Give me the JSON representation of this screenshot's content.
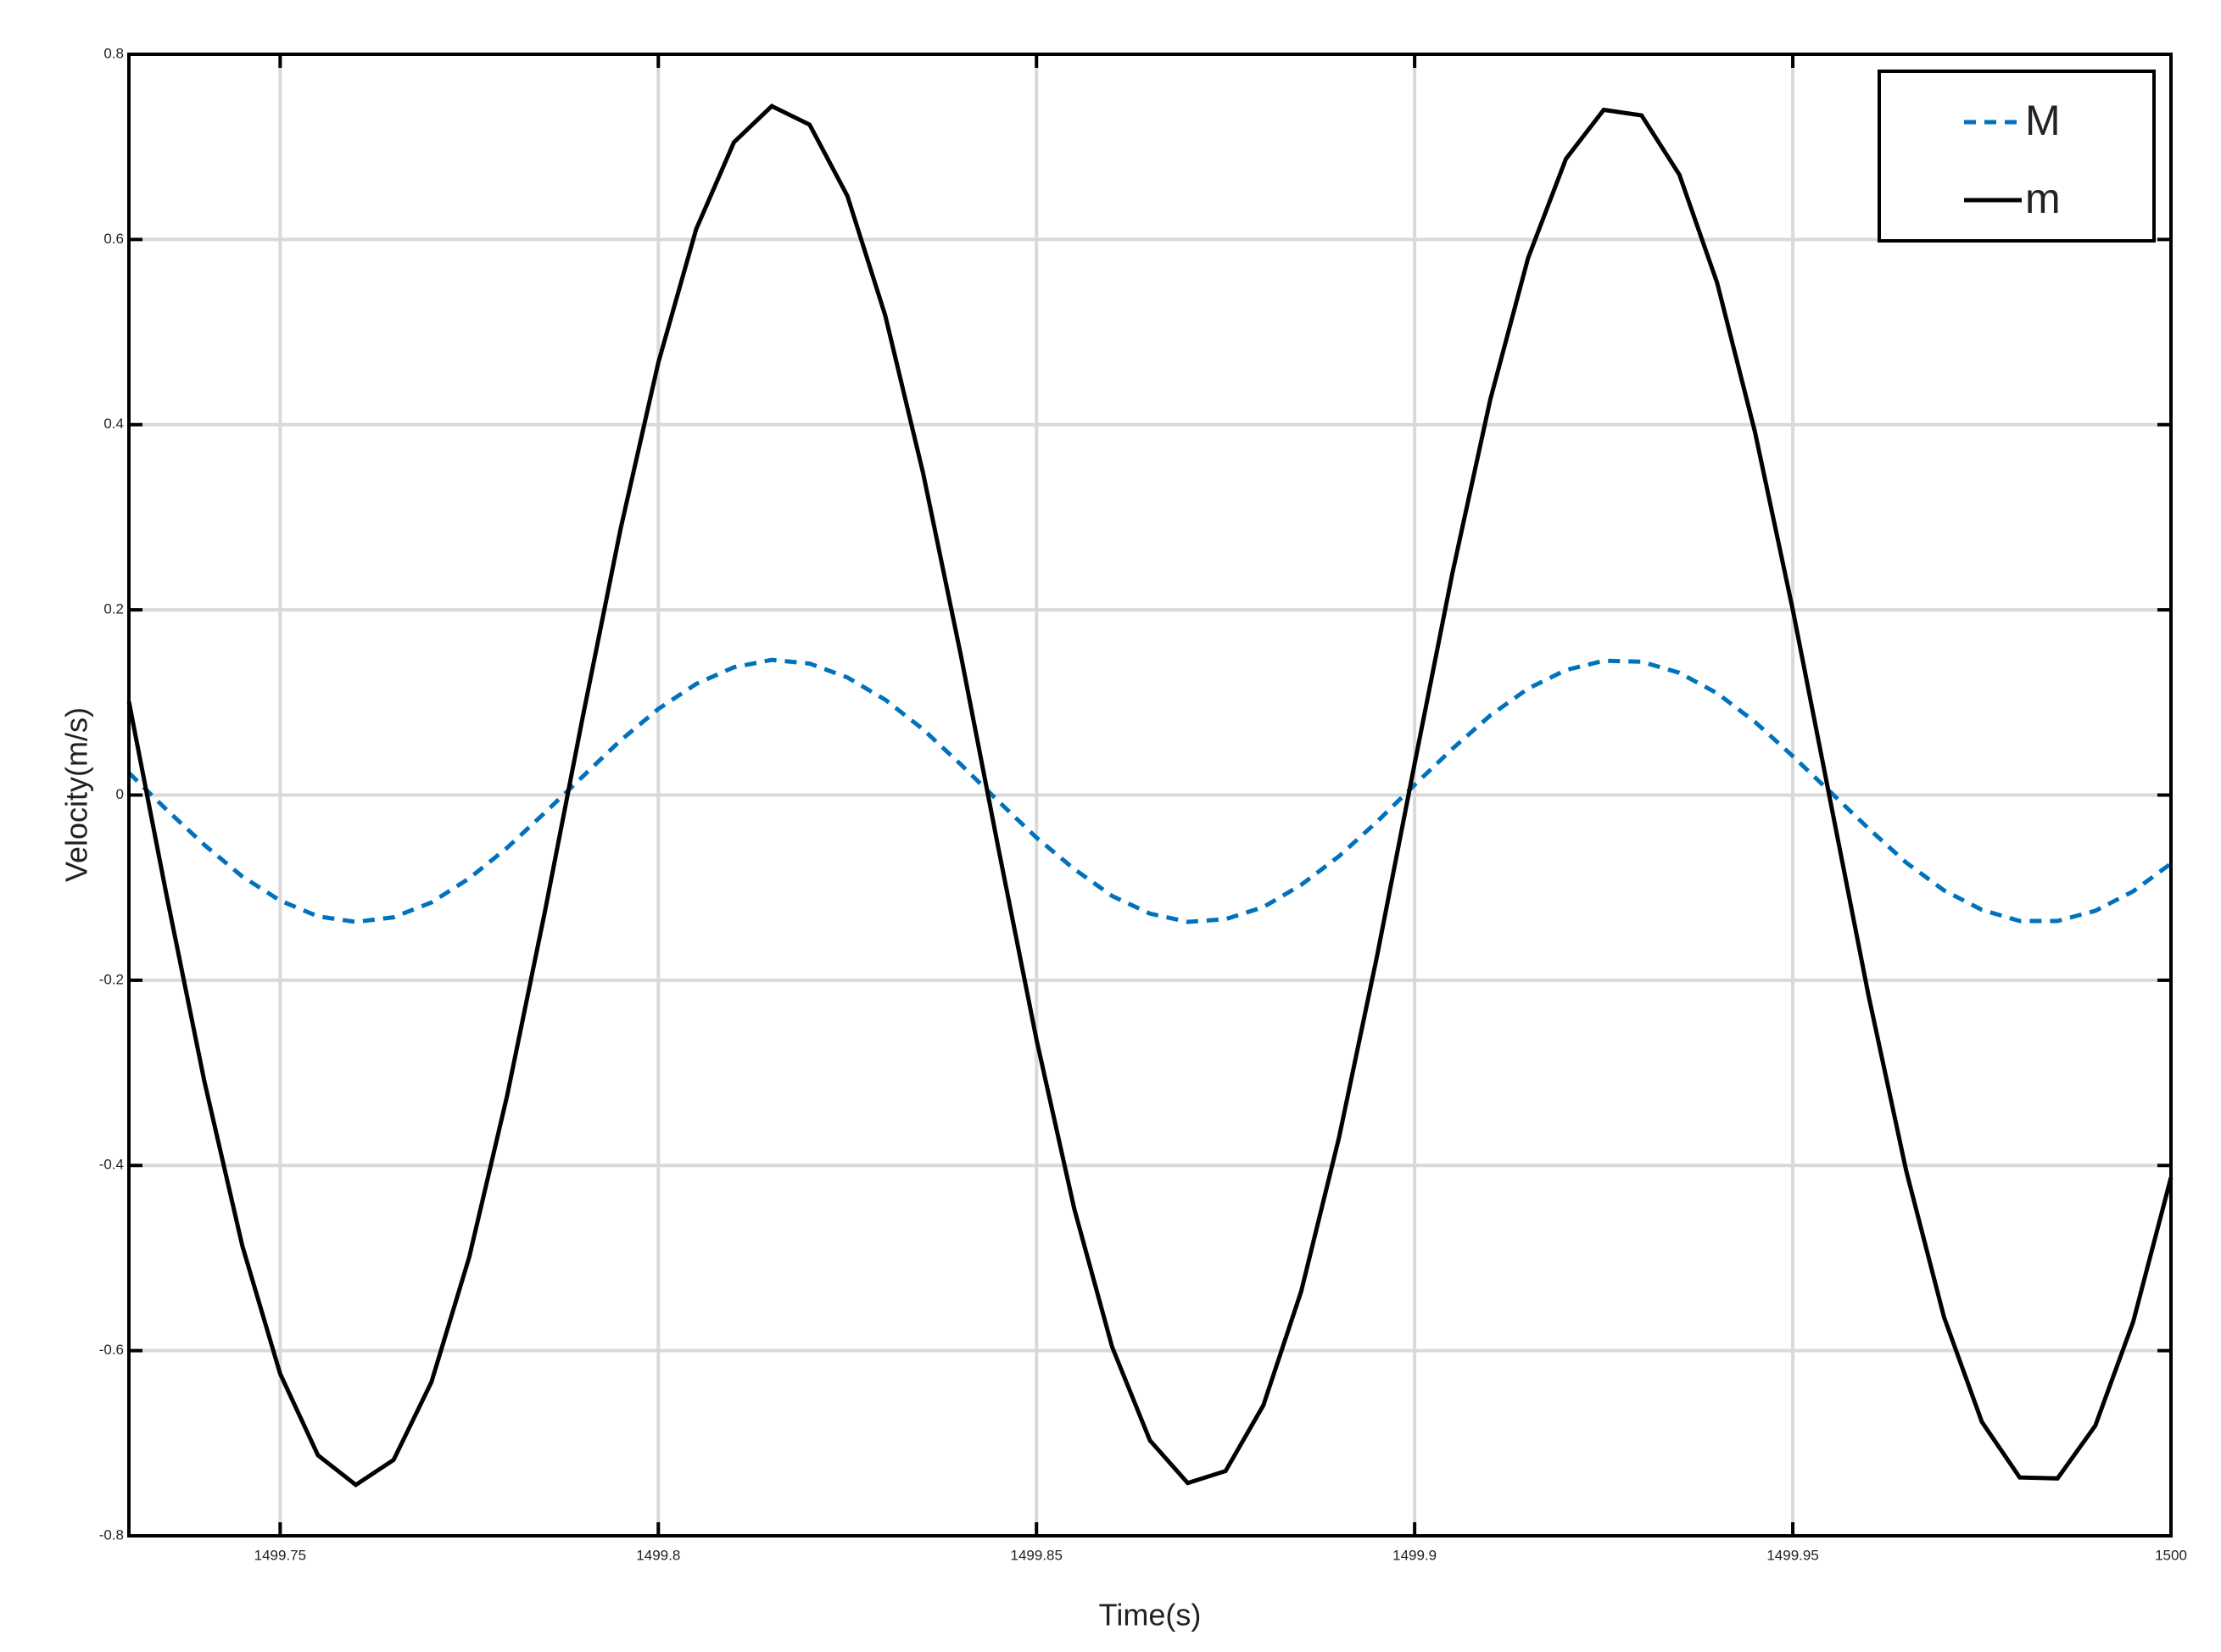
{
  "chart_data": {
    "type": "line",
    "x_label": "Time(s)",
    "y_label": "Velocity(m/s)",
    "x": [
      1499.73,
      1499.735,
      1499.74,
      1499.745,
      1499.75,
      1499.755,
      1499.76,
      1499.765,
      1499.77,
      1499.775,
      1499.78,
      1499.785,
      1499.79,
      1499.795,
      1499.8,
      1499.805,
      1499.81,
      1499.815,
      1499.82,
      1499.825,
      1499.83,
      1499.835,
      1499.84,
      1499.845,
      1499.85,
      1499.855,
      1499.86,
      1499.865,
      1499.87,
      1499.875,
      1499.88,
      1499.885,
      1499.89,
      1499.895,
      1499.9,
      1499.905,
      1499.91,
      1499.915,
      1499.92,
      1499.925,
      1499.93,
      1499.935,
      1499.94,
      1499.945,
      1499.95,
      1499.955,
      1499.96,
      1499.965,
      1499.97,
      1499.975,
      1499.98,
      1499.985,
      1499.99,
      1499.995,
      1500
    ],
    "series": [
      {
        "name": "M",
        "color": "#0072bd",
        "dashed": true,
        "values": [
          0.024,
          -0.016,
          -0.054,
          -0.088,
          -0.114,
          -0.131,
          -0.137,
          -0.132,
          -0.116,
          -0.09,
          -0.057,
          -0.019,
          0.02,
          0.059,
          0.093,
          0.12,
          0.138,
          0.146,
          0.142,
          0.127,
          0.103,
          0.071,
          0.033,
          -0.007,
          -0.046,
          -0.08,
          -0.109,
          -0.128,
          -0.137,
          -0.134,
          -0.121,
          -0.097,
          -0.066,
          -0.029,
          0.011,
          0.05,
          0.086,
          0.115,
          0.135,
          0.145,
          0.144,
          0.132,
          0.11,
          0.079,
          0.042,
          0.003,
          -0.036,
          -0.073,
          -0.103,
          -0.124,
          -0.136,
          -0.136,
          -0.125,
          -0.104,
          -0.074
        ]
      },
      {
        "name": "m",
        "color": "#000000",
        "dashed": false,
        "values": [
          0.101,
          -0.109,
          -0.31,
          -0.487,
          -0.625,
          -0.713,
          -0.745,
          -0.718,
          -0.634,
          -0.499,
          -0.325,
          -0.126,
          0.084,
          0.287,
          0.467,
          0.611,
          0.705,
          0.744,
          0.724,
          0.647,
          0.518,
          0.348,
          0.151,
          -0.059,
          -0.264,
          -0.447,
          -0.596,
          -0.697,
          -0.743,
          -0.73,
          -0.659,
          -0.536,
          -0.37,
          -0.175,
          0.034,
          0.24,
          0.427,
          0.58,
          0.687,
          0.74,
          0.734,
          0.67,
          0.553,
          0.392,
          0.2,
          -0.008,
          -0.216,
          -0.406,
          -0.564,
          -0.677,
          -0.737,
          -0.738,
          -0.681,
          -0.569,
          -0.413
        ]
      }
    ],
    "xlim": [
      1499.73,
      1500
    ],
    "xticks": [
      1499.75,
      1499.8,
      1499.85,
      1499.9,
      1499.95,
      1500
    ],
    "ylim": [
      -0.8,
      0.8
    ],
    "yticks": [
      -0.8,
      -0.6,
      -0.4,
      -0.2,
      0,
      0.2,
      0.4,
      0.6,
      0.8
    ],
    "grid": true,
    "legend": "upper right"
  }
}
